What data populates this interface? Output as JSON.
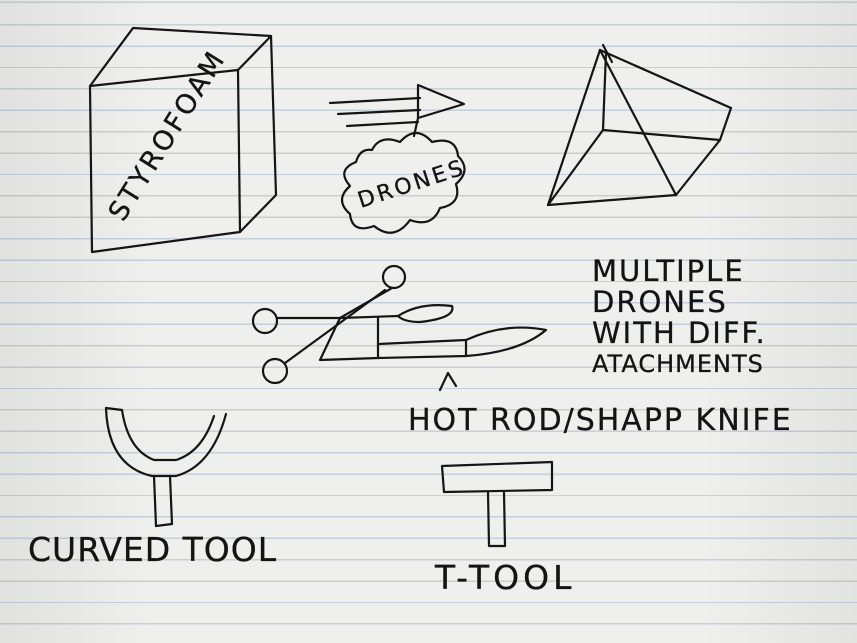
{
  "labels": {
    "styrofoam": "STYROFOAM",
    "drones": "DRONES",
    "multiple_drones": [
      "MULTIPLE",
      "DRONES",
      "WITH DIFF.",
      "ATACHMENTS"
    ],
    "hot_rod": "HOT ROD/SHAPP KNIFE",
    "curved_tool": "CURVED TOOL",
    "t_tool": "T-TOOL"
  },
  "colors": {
    "ink": "#151515",
    "paper": "#efefed",
    "rule_lines": "#c9cfd8"
  }
}
